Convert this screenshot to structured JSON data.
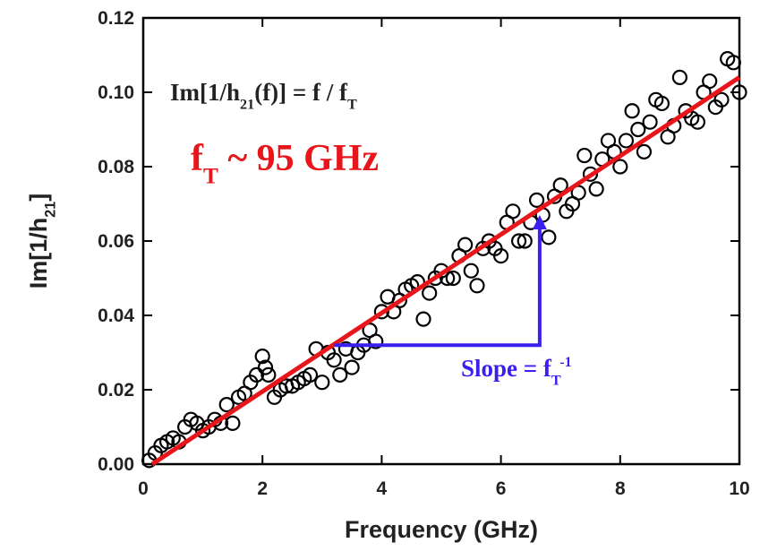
{
  "chart_data": {
    "type": "scatter",
    "x_label": "Frequency (GHz)",
    "y_label": [
      {
        "text": "Im[1/h"
      },
      {
        "text": "21",
        "shift": "sub"
      },
      {
        "text": "]"
      }
    ],
    "xlim": [
      0,
      10
    ],
    "ylim": [
      0,
      0.12
    ],
    "xticks": [
      0,
      2,
      4,
      6,
      8,
      10
    ],
    "yticks": [
      {
        "value": 0,
        "label": "0.00"
      },
      {
        "value": 0.02,
        "label": "0.02"
      },
      {
        "value": 0.04,
        "label": "0.04"
      },
      {
        "value": 0.06,
        "label": "0.06"
      },
      {
        "value": 0.08,
        "label": "0.08"
      },
      {
        "value": 0.1,
        "label": "0.10"
      },
      {
        "value": 0.12,
        "label": "0.12"
      }
    ],
    "marker_color": "#000000",
    "x": [
      0.1,
      0.2,
      0.3,
      0.4,
      0.5,
      0.6,
      0.7,
      0.8,
      0.9,
      1.0,
      1.1,
      1.2,
      1.3,
      1.4,
      1.5,
      1.6,
      1.7,
      1.8,
      1.9,
      2.0,
      2.05,
      2.1,
      2.2,
      2.3,
      2.4,
      2.5,
      2.6,
      2.7,
      2.8,
      2.9,
      3.0,
      3.1,
      3.2,
      3.3,
      3.4,
      3.5,
      3.6,
      3.7,
      3.8,
      3.9,
      4.0,
      4.1,
      4.2,
      4.3,
      4.4,
      4.5,
      4.6,
      4.7,
      4.8,
      4.9,
      5.0,
      5.1,
      5.2,
      5.3,
      5.4,
      5.5,
      5.6,
      5.7,
      5.8,
      5.9,
      6.0,
      6.1,
      6.2,
      6.3,
      6.4,
      6.5,
      6.6,
      6.7,
      6.8,
      6.9,
      7.0,
      7.1,
      7.2,
      7.3,
      7.4,
      7.5,
      7.6,
      7.7,
      7.8,
      7.9,
      8.0,
      8.1,
      8.2,
      8.3,
      8.4,
      8.5,
      8.6,
      8.7,
      8.8,
      8.9,
      9.0,
      9.1,
      9.2,
      9.3,
      9.4,
      9.5,
      9.6,
      9.7,
      9.8,
      9.9,
      10.0
    ],
    "values": [
      0.001,
      0.003,
      0.005,
      0.006,
      0.007,
      0.006,
      0.01,
      0.012,
      0.011,
      0.009,
      0.01,
      0.012,
      0.011,
      0.016,
      0.011,
      0.018,
      0.019,
      0.022,
      0.024,
      0.029,
      0.026,
      0.024,
      0.018,
      0.02,
      0.021,
      0.021,
      0.022,
      0.023,
      0.024,
      0.031,
      0.022,
      0.03,
      0.028,
      0.024,
      0.031,
      0.026,
      0.03,
      0.032,
      0.036,
      0.033,
      0.041,
      0.045,
      0.041,
      0.044,
      0.047,
      0.048,
      0.049,
      0.039,
      0.046,
      0.05,
      0.052,
      0.05,
      0.05,
      0.056,
      0.059,
      0.052,
      0.048,
      0.058,
      0.06,
      0.058,
      0.056,
      0.065,
      0.068,
      0.06,
      0.06,
      0.065,
      0.071,
      0.067,
      0.061,
      0.072,
      0.075,
      0.068,
      0.07,
      0.073,
      0.083,
      0.078,
      0.074,
      0.082,
      0.087,
      0.084,
      0.08,
      0.087,
      0.095,
      0.09,
      0.084,
      0.092,
      0.098,
      0.097,
      0.088,
      0.091,
      0.104,
      0.095,
      0.093,
      0.092,
      0.1,
      0.103,
      0.096,
      0.098,
      0.109,
      0.108,
      0.1
    ],
    "fit_line": {
      "color": "#e8161b",
      "x": [
        0.15,
        10
      ],
      "values": [
        0,
        0.104
      ]
    },
    "slope_marker": {
      "color": "#3b1ff0",
      "x": [
        3.2,
        6.65
      ],
      "values": [
        0.032,
        0.067
      ]
    },
    "annotations": [
      {
        "color": "#222222",
        "size": 27,
        "parts": [
          {
            "text": "Im[1/h"
          },
          {
            "text": "21",
            "shift": "sub"
          },
          {
            "text": "(f)] = f / f"
          },
          {
            "text": "T",
            "shift": "sub"
          }
        ]
      },
      {
        "color": "#e8161b",
        "size": 42,
        "parts": [
          {
            "text": "f"
          },
          {
            "text": "T",
            "shift": "sub"
          },
          {
            "text": " ~ 95 GHz"
          }
        ]
      },
      {
        "color": "#3b1ff0",
        "size": 27,
        "parts": [
          {
            "text": "Slope = f"
          },
          {
            "text": "T",
            "shift": "sub"
          },
          {
            "text": "-1",
            "shift": "sup"
          }
        ]
      }
    ]
  }
}
